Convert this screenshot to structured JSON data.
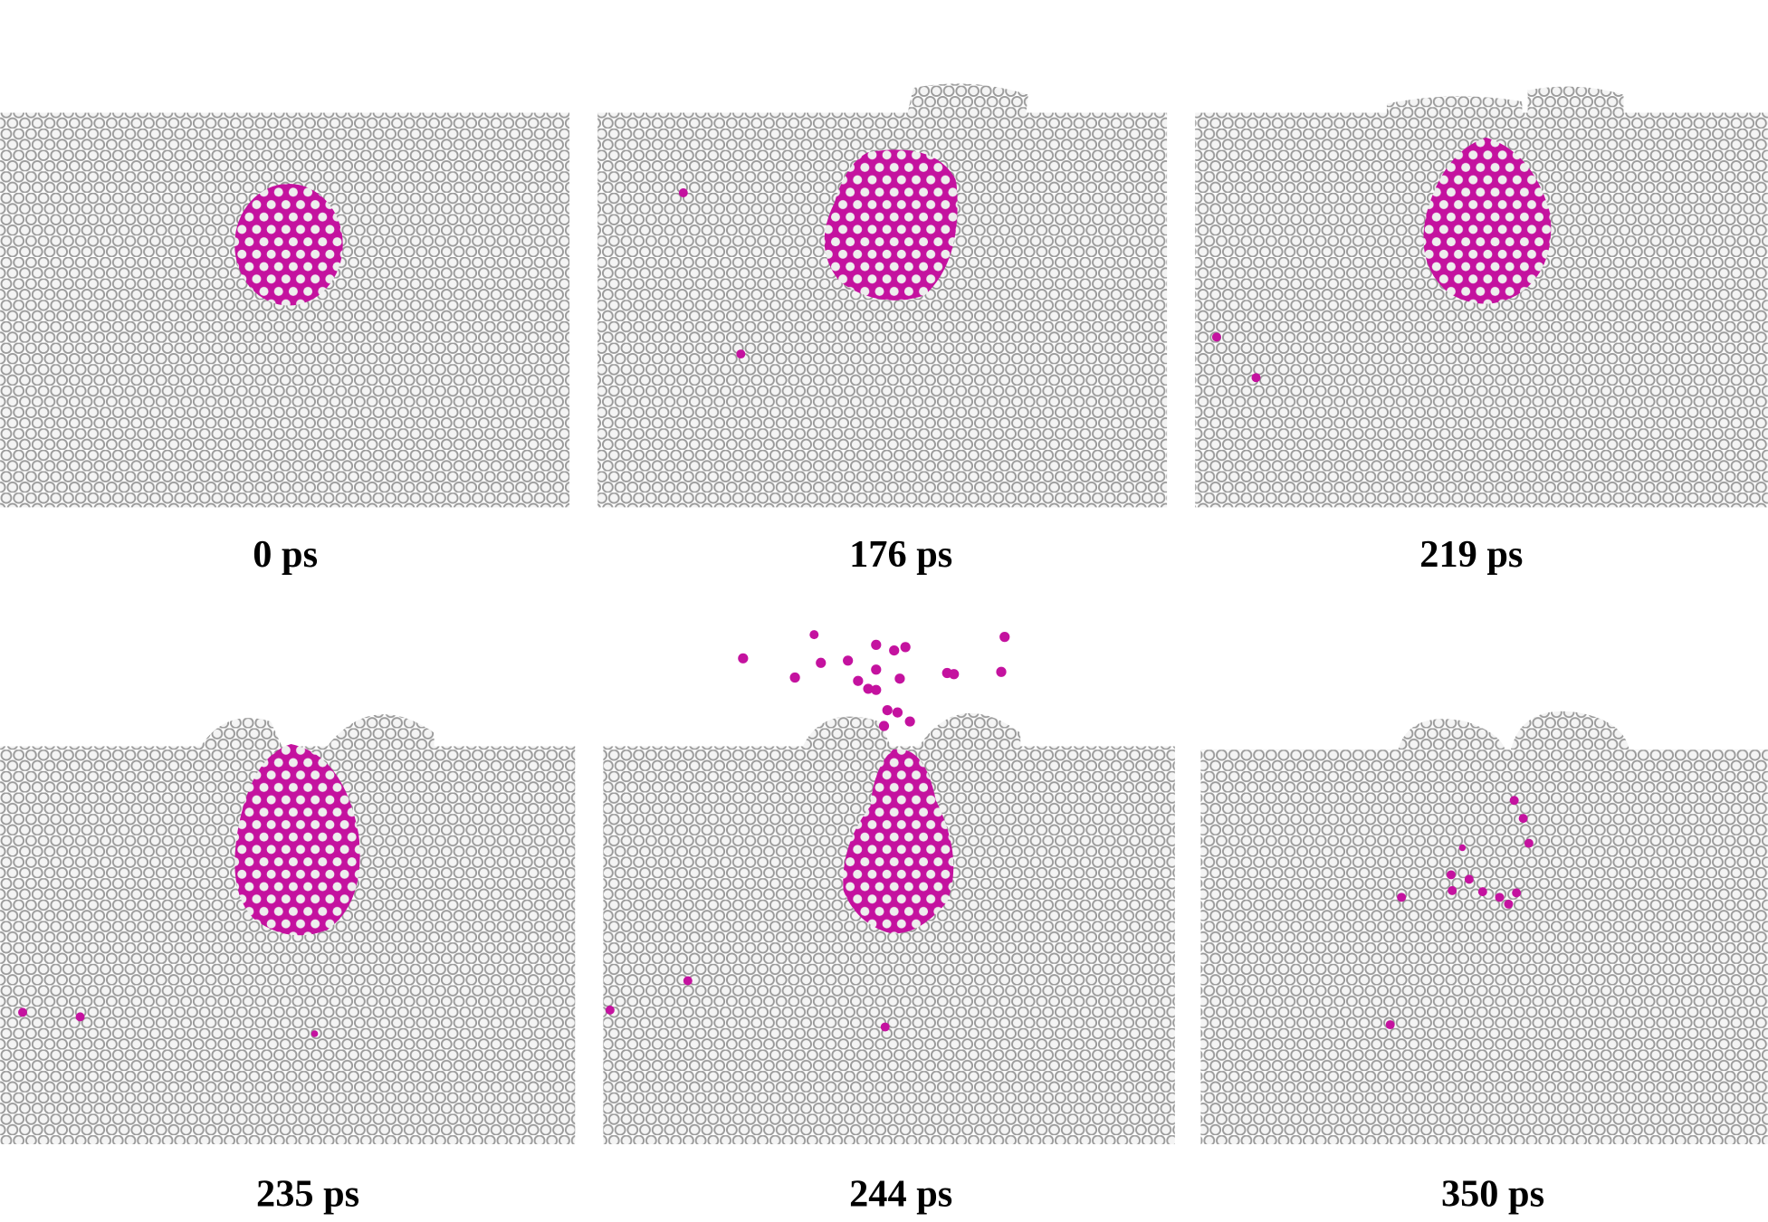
{
  "panels": [
    {
      "label": "0 ps"
    },
    {
      "label": "176 ps"
    },
    {
      "label": "219 ps"
    },
    {
      "label": "235 ps"
    },
    {
      "label": "244 ps"
    },
    {
      "label": "350 ps"
    }
  ]
}
